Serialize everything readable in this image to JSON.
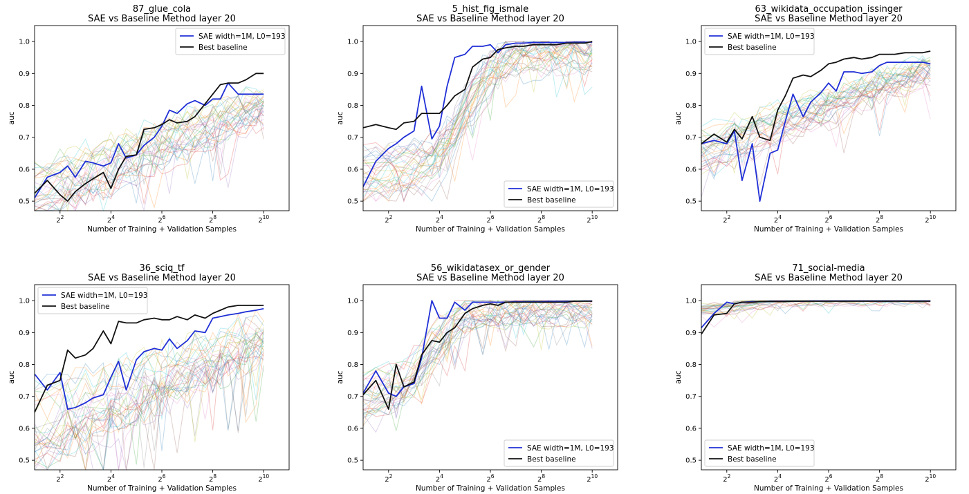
{
  "colors": {
    "sae": "#1f2fd6",
    "baseline": "#111111",
    "background_palette": [
      "#1f77b4",
      "#ff7f0e",
      "#2ca02c",
      "#d62728",
      "#9467bd",
      "#8c564b",
      "#e377c2",
      "#7f7f7f",
      "#bcbd22",
      "#17becf"
    ]
  },
  "chart_data": [
    {
      "type": "line",
      "title": "87_glue_cola",
      "subtitle": "SAE vs Baseline Method layer 20",
      "xlabel": "Number of Training + Validation Samples",
      "ylabel": "auc",
      "xscale": "log2",
      "xlim": [
        1,
        11
      ],
      "ylim": [
        0.47,
        1.05
      ],
      "yticks": [
        "0.5",
        "0.6",
        "0.7",
        "0.8",
        "0.9",
        "1.0"
      ],
      "xticks": [
        "2",
        "4",
        "6",
        "8",
        "10"
      ],
      "xtick_base": "2",
      "legend_loc": "upper right",
      "x": [
        1.0,
        1.5,
        2.0,
        2.3,
        2.6,
        3.0,
        3.3,
        3.7,
        4.0,
        4.3,
        4.6,
        5.0,
        5.3,
        5.7,
        6.0,
        6.3,
        6.6,
        7.0,
        7.3,
        7.7,
        8.0,
        8.3,
        8.6,
        9.0,
        9.3,
        9.7,
        10.0
      ],
      "series": [
        {
          "name": "SAE width=1M, L0=193",
          "role": "sae",
          "values": [
            0.51,
            0.575,
            0.59,
            0.61,
            0.575,
            0.625,
            0.62,
            0.61,
            0.62,
            0.68,
            0.635,
            0.645,
            0.675,
            0.7,
            0.735,
            0.785,
            0.775,
            0.805,
            0.815,
            0.8,
            0.82,
            0.82,
            0.87,
            0.835,
            0.835,
            0.835,
            0.835
          ]
        },
        {
          "name": "Best baseline",
          "role": "baseline",
          "values": [
            0.525,
            0.565,
            0.52,
            0.5,
            0.53,
            0.555,
            0.57,
            0.59,
            0.54,
            0.6,
            0.64,
            0.645,
            0.725,
            0.73,
            0.74,
            0.755,
            0.745,
            0.75,
            0.765,
            0.805,
            0.835,
            0.865,
            0.87,
            0.87,
            0.88,
            0.9,
            0.9
          ]
        }
      ],
      "background": {
        "count": 32,
        "shape": "rise",
        "y0": 0.53,
        "y1": 0.8,
        "spread": 0.09,
        "floor": 0.47,
        "ceil": 1.0
      }
    },
    {
      "type": "line",
      "title": "5_hist_fig_ismale",
      "subtitle": "SAE vs Baseline Method layer 20",
      "xlabel": "Number of Training + Validation Samples",
      "ylabel": "auc",
      "xscale": "log2",
      "xlim": [
        1,
        11
      ],
      "ylim": [
        0.47,
        1.05
      ],
      "yticks": [
        "0.5",
        "0.6",
        "0.7",
        "0.8",
        "0.9",
        "1.0"
      ],
      "xticks": [
        "2",
        "4",
        "6",
        "8",
        "10"
      ],
      "xtick_base": "2",
      "legend_loc": "lower right",
      "x": [
        1.0,
        1.5,
        2.0,
        2.3,
        2.6,
        3.0,
        3.3,
        3.7,
        4.0,
        4.3,
        4.6,
        5.0,
        5.3,
        5.7,
        6.0,
        6.3,
        6.6,
        7.0,
        7.3,
        7.7,
        8.0,
        8.3,
        8.6,
        9.0,
        9.3,
        9.7,
        10.0
      ],
      "series": [
        {
          "name": "SAE width=1M, L0=193",
          "role": "sae",
          "values": [
            0.545,
            0.625,
            0.665,
            0.68,
            0.7,
            0.72,
            0.86,
            0.695,
            0.735,
            0.86,
            0.95,
            0.96,
            0.985,
            0.985,
            0.99,
            0.965,
            0.99,
            0.995,
            0.995,
            0.997,
            0.997,
            0.997,
            0.997,
            0.997,
            0.998,
            0.998,
            0.998
          ]
        },
        {
          "name": "Best baseline",
          "role": "baseline",
          "values": [
            0.73,
            0.74,
            0.73,
            0.725,
            0.745,
            0.75,
            0.775,
            0.775,
            0.775,
            0.8,
            0.83,
            0.85,
            0.92,
            0.945,
            0.95,
            0.975,
            0.98,
            0.985,
            0.985,
            0.99,
            0.99,
            0.99,
            0.99,
            0.995,
            0.995,
            0.995,
            1.0
          ]
        }
      ],
      "background": {
        "count": 32,
        "shape": "sigmoid",
        "y0": 0.58,
        "y1": 0.96,
        "mid": 5.0,
        "spread": 0.08,
        "floor": 0.5,
        "ceil": 1.0
      }
    },
    {
      "type": "line",
      "title": "63_wikidata_occupation_issinger",
      "subtitle": "SAE vs Baseline Method layer 20",
      "xlabel": "Number of Training + Validation Samples",
      "ylabel": "auc",
      "xscale": "log2",
      "xlim": [
        1,
        11
      ],
      "ylim": [
        0.47,
        1.05
      ],
      "yticks": [
        "0.5",
        "0.6",
        "0.7",
        "0.8",
        "0.9",
        "1.0"
      ],
      "xticks": [
        "2",
        "4",
        "6",
        "8",
        "10"
      ],
      "xtick_base": "2",
      "legend_loc": "upper left",
      "x": [
        1.0,
        1.5,
        2.0,
        2.3,
        2.6,
        3.0,
        3.3,
        3.7,
        4.0,
        4.3,
        4.6,
        5.0,
        5.3,
        5.7,
        6.0,
        6.3,
        6.6,
        7.0,
        7.3,
        7.7,
        8.0,
        8.3,
        8.6,
        9.0,
        9.3,
        9.7,
        10.0
      ],
      "series": [
        {
          "name": "SAE width=1M, L0=193",
          "role": "sae",
          "values": [
            0.68,
            0.69,
            0.68,
            0.72,
            0.565,
            0.68,
            0.5,
            0.65,
            0.66,
            0.75,
            0.835,
            0.765,
            0.81,
            0.84,
            0.87,
            0.845,
            0.905,
            0.905,
            0.9,
            0.905,
            0.925,
            0.935,
            0.935,
            0.935,
            0.935,
            0.935,
            0.93
          ]
        },
        {
          "name": "Best baseline",
          "role": "baseline",
          "values": [
            0.68,
            0.71,
            0.685,
            0.725,
            0.695,
            0.765,
            0.7,
            0.69,
            0.785,
            0.83,
            0.885,
            0.895,
            0.89,
            0.91,
            0.93,
            0.935,
            0.945,
            0.95,
            0.945,
            0.95,
            0.96,
            0.96,
            0.96,
            0.965,
            0.965,
            0.965,
            0.97
          ]
        }
      ],
      "background": {
        "count": 32,
        "shape": "rise",
        "y0": 0.66,
        "y1": 0.92,
        "spread": 0.07,
        "floor": 0.47,
        "ceil": 1.0
      }
    },
    {
      "type": "line",
      "title": "36_sciq_tf",
      "subtitle": "SAE vs Baseline Method layer 20",
      "xlabel": "Number of Training + Validation Samples",
      "ylabel": "auc",
      "xscale": "log2",
      "xlim": [
        1,
        11
      ],
      "ylim": [
        0.47,
        1.05
      ],
      "yticks": [
        "0.5",
        "0.6",
        "0.7",
        "0.8",
        "0.9",
        "1.0"
      ],
      "xticks": [
        "2",
        "4",
        "6",
        "8",
        "10"
      ],
      "xtick_base": "2",
      "legend_loc": "upper left",
      "x": [
        1.0,
        1.5,
        2.0,
        2.3,
        2.6,
        3.0,
        3.3,
        3.7,
        4.0,
        4.3,
        4.6,
        5.0,
        5.3,
        5.7,
        6.0,
        6.3,
        6.6,
        7.0,
        7.3,
        7.7,
        8.0,
        8.3,
        8.6,
        9.0,
        9.3,
        9.7,
        10.0
      ],
      "series": [
        {
          "name": "SAE width=1M, L0=193",
          "role": "sae",
          "values": [
            0.77,
            0.72,
            0.775,
            0.66,
            0.665,
            0.68,
            0.695,
            0.705,
            0.76,
            0.81,
            0.72,
            0.815,
            0.84,
            0.85,
            0.845,
            0.88,
            0.85,
            0.875,
            0.905,
            0.9,
            0.945,
            0.95,
            0.955,
            0.96,
            0.965,
            0.97,
            0.975
          ]
        },
        {
          "name": "Best baseline",
          "role": "baseline",
          "values": [
            0.65,
            0.735,
            0.75,
            0.845,
            0.82,
            0.83,
            0.85,
            0.905,
            0.865,
            0.935,
            0.93,
            0.93,
            0.94,
            0.945,
            0.94,
            0.94,
            0.95,
            0.94,
            0.955,
            0.945,
            0.96,
            0.97,
            0.98,
            0.985,
            0.985,
            0.985,
            0.985
          ]
        }
      ],
      "background": {
        "count": 32,
        "shape": "rise",
        "y0": 0.6,
        "y1": 0.88,
        "spread": 0.12,
        "floor": 0.47,
        "ceil": 1.0
      }
    },
    {
      "type": "line",
      "title": "56_wikidatasex_or_gender",
      "subtitle": "SAE vs Baseline Method layer 20",
      "xlabel": "Number of Training + Validation Samples",
      "ylabel": "auc",
      "xscale": "log2",
      "xlim": [
        1,
        11
      ],
      "ylim": [
        0.47,
        1.05
      ],
      "yticks": [
        "0.5",
        "0.6",
        "0.7",
        "0.8",
        "0.9",
        "1.0"
      ],
      "xticks": [
        "2",
        "4",
        "6",
        "8",
        "10"
      ],
      "xtick_base": "2",
      "legend_loc": "lower right",
      "x": [
        1.0,
        1.5,
        2.0,
        2.3,
        2.6,
        3.0,
        3.3,
        3.7,
        4.0,
        4.3,
        4.6,
        5.0,
        5.3,
        5.7,
        6.0,
        6.3,
        6.6,
        7.0,
        7.3,
        7.7,
        8.0,
        8.3,
        8.6,
        9.0,
        9.3,
        9.7,
        10.0
      ],
      "series": [
        {
          "name": "SAE width=1M, L0=193",
          "role": "sae",
          "values": [
            0.71,
            0.78,
            0.71,
            0.7,
            0.73,
            0.74,
            0.82,
            1.0,
            0.945,
            0.945,
            0.995,
            0.97,
            0.995,
            0.995,
            0.995,
            0.995,
            0.995,
            0.997,
            0.997,
            0.997,
            0.997,
            0.998,
            0.998,
            0.998,
            0.998,
            0.999,
            0.999
          ]
        },
        {
          "name": "Best baseline",
          "role": "baseline",
          "values": [
            0.705,
            0.75,
            0.66,
            0.8,
            0.73,
            0.745,
            0.83,
            0.875,
            0.87,
            0.9,
            0.915,
            0.96,
            0.975,
            0.985,
            0.99,
            0.985,
            0.995,
            0.995,
            0.995,
            0.995,
            0.995,
            0.995,
            0.995,
            0.995,
            0.998,
            0.998,
            0.998
          ]
        }
      ],
      "background": {
        "count": 32,
        "shape": "sigmoid",
        "y0": 0.7,
        "y1": 0.98,
        "mid": 3.6,
        "spread": 0.07,
        "floor": 0.5,
        "ceil": 1.0
      }
    },
    {
      "type": "line",
      "title": "71_social-media",
      "subtitle": "SAE vs Baseline Method layer 20",
      "xlabel": "Number of Training + Validation Samples",
      "ylabel": "auc",
      "xscale": "log2",
      "xlim": [
        1,
        11
      ],
      "ylim": [
        0.47,
        1.05
      ],
      "yticks": [
        "0.5",
        "0.6",
        "0.7",
        "0.8",
        "0.9",
        "1.0"
      ],
      "xticks": [
        "2",
        "4",
        "6",
        "8",
        "10"
      ],
      "xtick_base": "2",
      "legend_loc": "lower left",
      "x": [
        1.0,
        1.5,
        2.0,
        2.3,
        2.6,
        3.0,
        3.3,
        3.7,
        4.0,
        4.3,
        4.6,
        5.0,
        5.3,
        5.7,
        6.0,
        6.3,
        6.6,
        7.0,
        7.3,
        7.7,
        8.0,
        8.3,
        8.6,
        9.0,
        9.3,
        9.7,
        10.0
      ],
      "series": [
        {
          "name": "SAE width=1M, L0=193",
          "role": "sae",
          "values": [
            0.915,
            0.96,
            0.995,
            0.99,
            0.995,
            0.997,
            0.997,
            0.998,
            0.998,
            0.998,
            0.998,
            0.998,
            0.999,
            0.999,
            0.999,
            0.999,
            0.999,
            0.999,
            0.999,
            0.999,
            0.999,
            0.999,
            0.999,
            0.999,
            0.999,
            0.999,
            0.999
          ]
        },
        {
          "name": "Best baseline",
          "role": "baseline",
          "values": [
            0.895,
            0.955,
            0.96,
            0.99,
            0.995,
            0.995,
            0.997,
            0.997,
            0.997,
            0.997,
            0.998,
            0.998,
            0.998,
            0.998,
            0.998,
            0.998,
            0.998,
            0.998,
            0.998,
            0.998,
            0.998,
            0.998,
            0.998,
            0.998,
            0.998,
            0.998,
            0.998
          ]
        }
      ],
      "background": {
        "count": 24,
        "shape": "flat",
        "y0": 0.97,
        "y1": 1.0,
        "spread": 0.02,
        "floor": 0.9,
        "ceil": 1.0
      }
    }
  ]
}
